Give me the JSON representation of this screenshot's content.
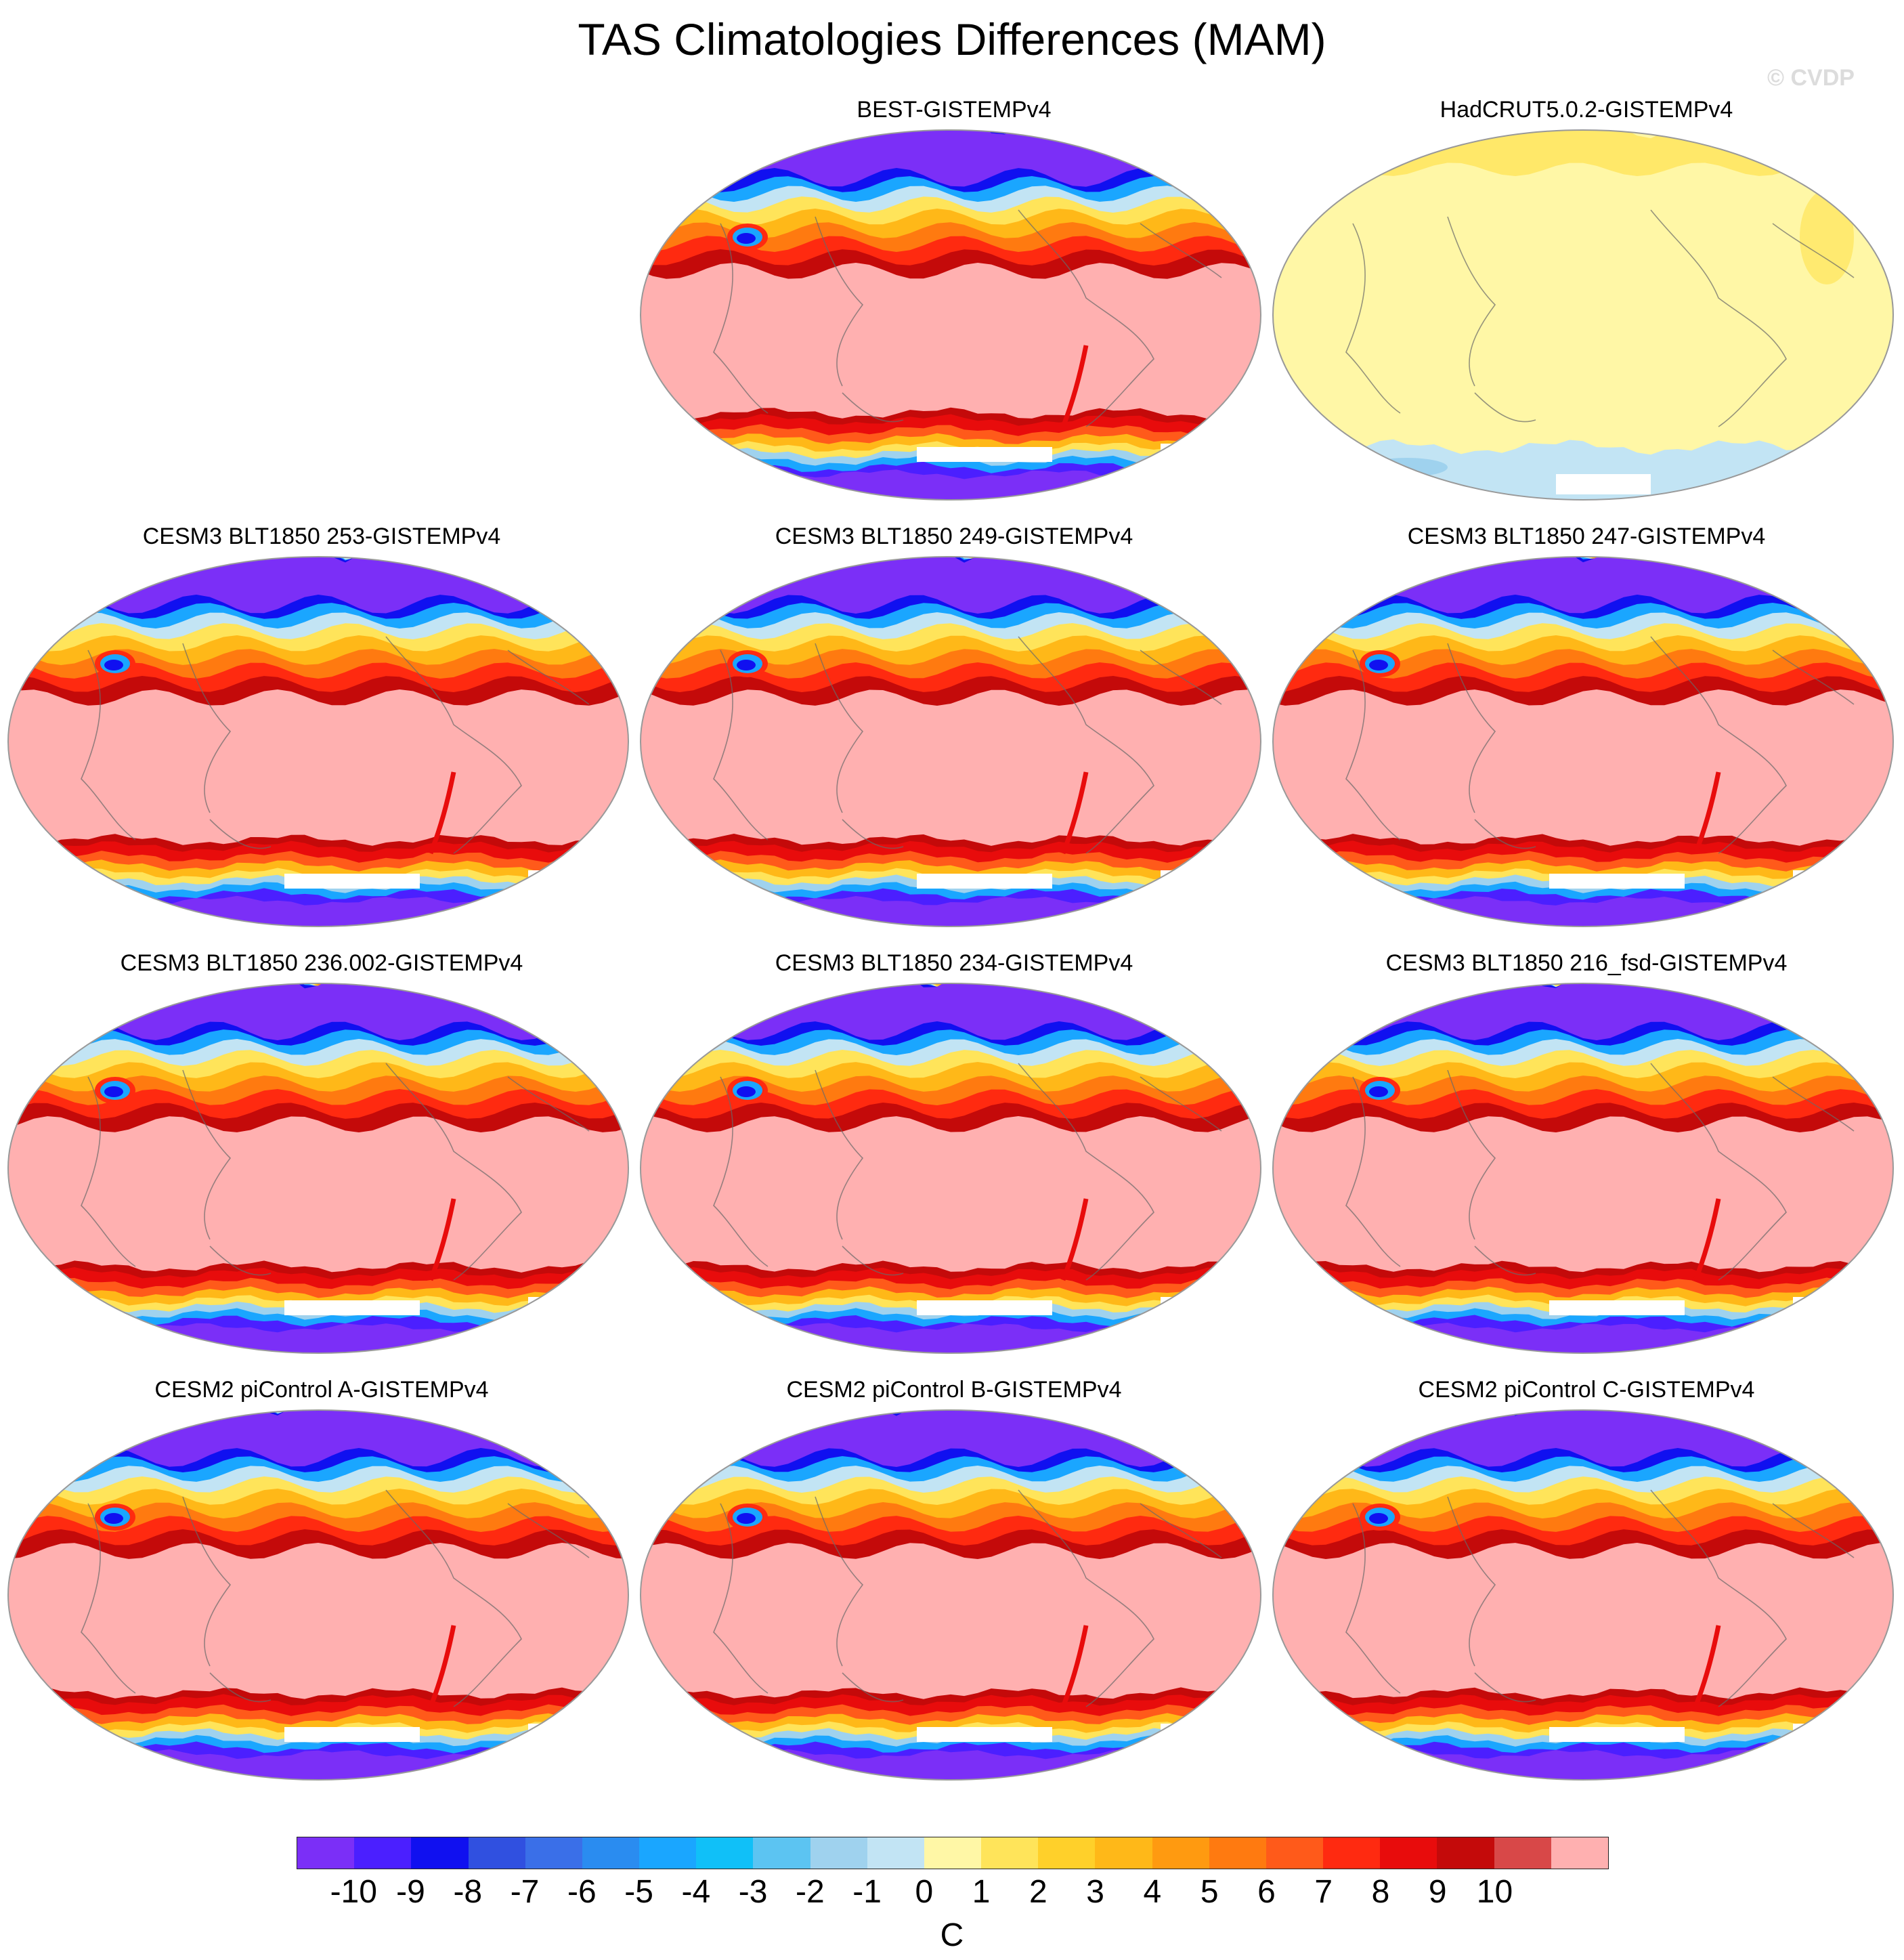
{
  "title": "TAS Climatologies Differences (MAM)",
  "watermark": "© CVDP",
  "panels": [
    {
      "title": "BEST-GISTEMPv4",
      "style": "model"
    },
    {
      "title": "HadCRUT5.0.2-GISTEMPv4",
      "style": "obs"
    },
    {
      "title": "CESM3 BLT1850 253-GISTEMPv4",
      "style": "model"
    },
    {
      "title": "CESM3 BLT1850 249-GISTEMPv4",
      "style": "model"
    },
    {
      "title": "CESM3 BLT1850 247-GISTEMPv4",
      "style": "model"
    },
    {
      "title": "CESM3 BLT1850 236.002-GISTEMPv4",
      "style": "model"
    },
    {
      "title": "CESM3 BLT1850 234-GISTEMPv4",
      "style": "model"
    },
    {
      "title": "CESM3 BLT1850 216_fsd-GISTEMPv4",
      "style": "model"
    },
    {
      "title": "CESM2 piControl A-GISTEMPv4",
      "style": "model"
    },
    {
      "title": "CESM2 piControl B-GISTEMPv4",
      "style": "model"
    },
    {
      "title": "CESM2 piControl C-GISTEMPv4",
      "style": "model"
    }
  ],
  "colorbar": {
    "colors": [
      "#7b2ff7",
      "#4b1fff",
      "#1010f0",
      "#3050e0",
      "#3a6fe8",
      "#2a8cf0",
      "#1aa6ff",
      "#10c0f8",
      "#5cc4f2",
      "#9fd2ee",
      "#c2e4f4",
      "#fff7a6",
      "#ffe45a",
      "#ffd02a",
      "#ffb818",
      "#ff9a10",
      "#ff7a10",
      "#ff5a1a",
      "#ff2a10",
      "#e80c0c",
      "#c40a0a",
      "#d84848",
      "#ffb0b0"
    ],
    "tick_labels": [
      "-10",
      "-9",
      "-8",
      "-7",
      "-6",
      "-5",
      "-4",
      "-3",
      "-2",
      "-1",
      "0",
      "1",
      "2",
      "3",
      "4",
      "5",
      "6",
      "7",
      "8",
      "9",
      "10"
    ],
    "units": "C"
  }
}
